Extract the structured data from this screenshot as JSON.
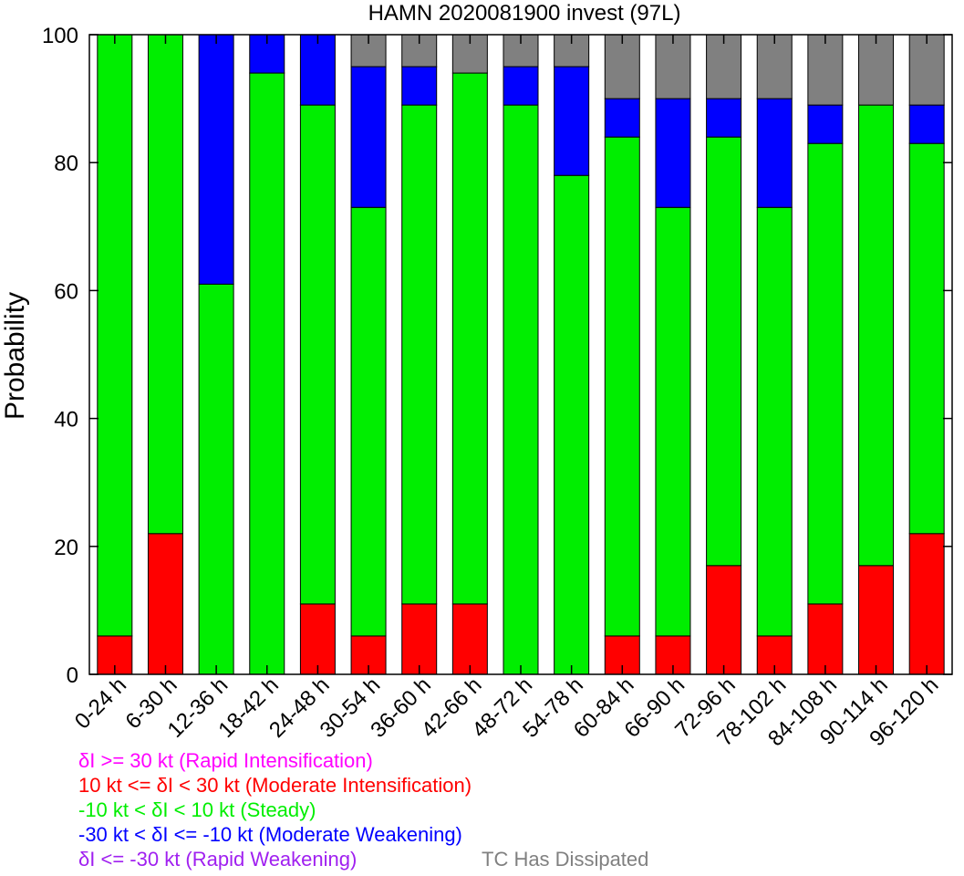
{
  "chart_data": {
    "type": "bar",
    "stacked": true,
    "title": "HAMN 2020081900 invest (97L)",
    "xlabel": "",
    "ylabel": "Probability",
    "ylim": [
      0,
      100
    ],
    "yticks": [
      0,
      20,
      40,
      60,
      80,
      100
    ],
    "grid": false,
    "categories": [
      "0-24 h",
      "6-30 h",
      "12-36 h",
      "18-42 h",
      "24-48 h",
      "30-54 h",
      "36-60 h",
      "42-66 h",
      "48-72 h",
      "54-78 h",
      "60-84 h",
      "66-90 h",
      "72-96 h",
      "78-102 h",
      "84-108 h",
      "90-114 h",
      "96-120 h"
    ],
    "series": [
      {
        "name": "δI >= 30 kt (Rapid Intensification)",
        "color": "#ff00ff",
        "values": [
          0,
          0,
          0,
          0,
          0,
          0,
          0,
          0,
          0,
          0,
          0,
          0,
          0,
          0,
          0,
          0,
          0
        ]
      },
      {
        "name": "10 kt <= δI < 30 kt (Moderate Intensification)",
        "color": "#ff0000",
        "values": [
          6,
          22,
          0,
          0,
          11,
          6,
          11,
          11,
          0,
          0,
          6,
          6,
          17,
          6,
          11,
          17,
          22
        ]
      },
      {
        "name": "-10 kt < δI < 10 kt (Steady)",
        "color": "#00ee00",
        "values": [
          94,
          78,
          61,
          94,
          78,
          67,
          78,
          83,
          89,
          78,
          78,
          67,
          67,
          67,
          72,
          72,
          61
        ]
      },
      {
        "name": "-30 kt < δI <= -10 kt (Moderate Weakening)",
        "color": "#0000ff",
        "values": [
          0,
          0,
          39,
          6,
          11,
          22,
          6,
          0,
          6,
          17,
          6,
          17,
          6,
          17,
          6,
          0,
          6
        ]
      },
      {
        "name": "δI <= -30 kt (Rapid Weakening)",
        "color": "#a020f0",
        "values": [
          0,
          0,
          0,
          0,
          0,
          0,
          0,
          0,
          0,
          0,
          0,
          0,
          0,
          0,
          0,
          0,
          0
        ]
      },
      {
        "name": "TC Has Dissipated",
        "color": "#808080",
        "values": [
          0,
          0,
          0,
          0,
          0,
          5,
          5,
          6,
          5,
          5,
          10,
          10,
          10,
          10,
          11,
          11,
          11
        ]
      }
    ]
  },
  "legend": {
    "rapid_intensification": "δI >= 30 kt (Rapid Intensification)",
    "moderate_intensification": "10 kt <= δI < 30 kt (Moderate Intensification)",
    "steady": "-10 kt < δI < 10 kt (Steady)",
    "moderate_weakening": "-30 kt < δI <= -10 kt (Moderate Weakening)",
    "rapid_weakening": "δI <= -30 kt (Rapid Weakening)",
    "dissipated": "TC Has Dissipated"
  }
}
